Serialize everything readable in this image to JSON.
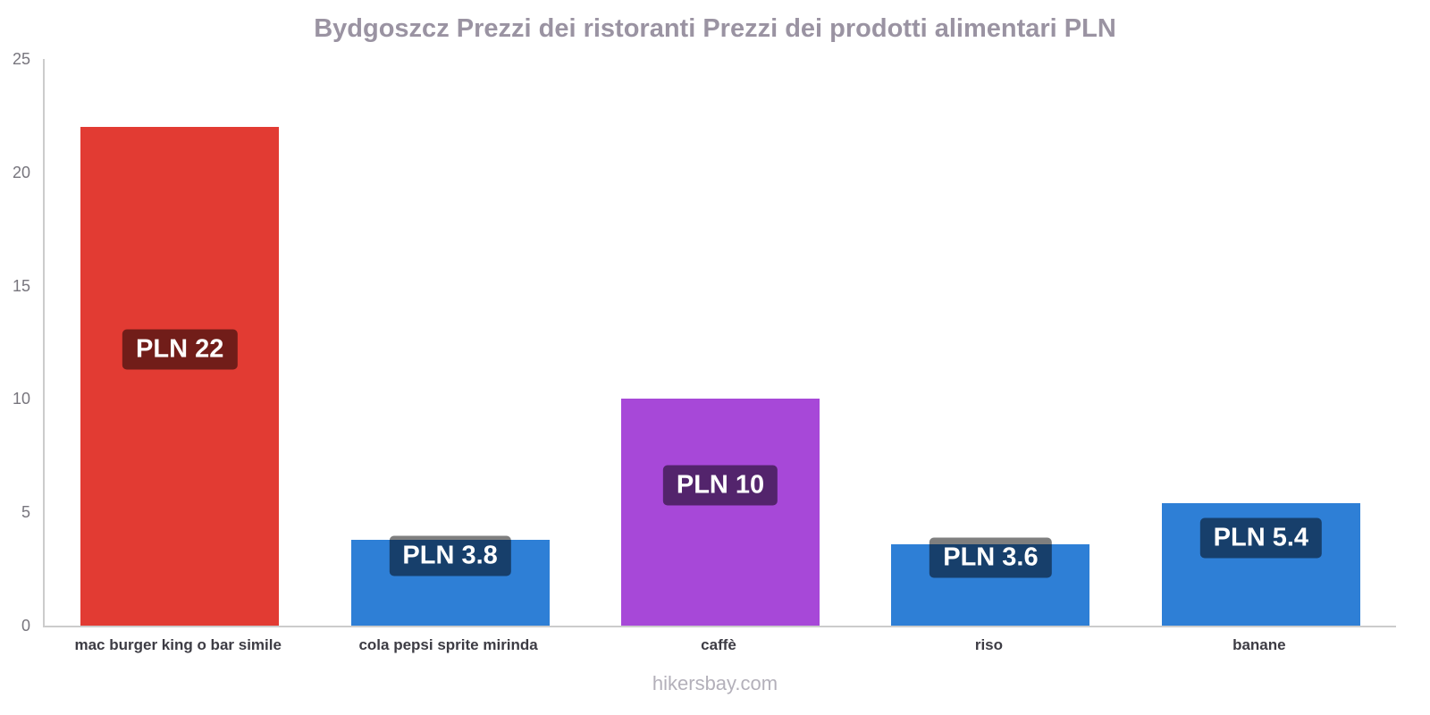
{
  "footer": "hikersbay.com",
  "chart_data": {
    "type": "bar",
    "title": "Bydgoszcz Prezzi dei ristoranti Prezzi dei prodotti alimentari PLN",
    "categories": [
      "mac burger king o bar simile",
      "cola pepsi sprite mirinda",
      "caffè",
      "riso",
      "banane"
    ],
    "values": [
      22,
      3.8,
      10,
      3.6,
      5.4
    ],
    "value_labels": [
      "PLN 22",
      "PLN 3.8",
      "PLN 10",
      "PLN 3.6",
      "PLN 5.4"
    ],
    "bar_colors": [
      "#e23b33",
      "#2e7fd6",
      "#a748d8",
      "#2e7fd6",
      "#2e7fd6"
    ],
    "currency": "PLN",
    "xlabel": "",
    "ylabel": "",
    "ylim": [
      0,
      25
    ],
    "yticks": [
      0,
      5,
      10,
      15,
      20,
      25
    ],
    "grid": false,
    "legend": false
  },
  "colors": {
    "title": "#9a93a2",
    "axis": "#cccccc",
    "tick_label": "#77757d",
    "x_label": "#3d3c44",
    "value_label_bg": "rgba(0,0,0,0.5)",
    "value_label_text": "#ffffff",
    "footer": "#b3b0ba"
  }
}
